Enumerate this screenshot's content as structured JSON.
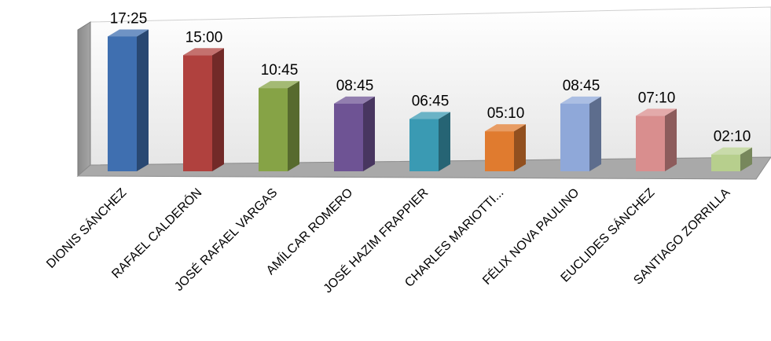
{
  "chart_data": {
    "type": "bar",
    "style": "3d-column",
    "categories": [
      "DIONIS SÁNCHEZ",
      "RAFAEL CALDERÓN",
      "JOSÉ RAFAEL VARGAS",
      "AMÍLCAR ROMERO",
      "JOSÉ  HAZIM FRAPPIER",
      "CHARLES MARIOTTI...",
      "FÉLIX NOVA PAULINO",
      "EUCLIDES SÁNCHEZ",
      "SANTIAGO ZORRILLA"
    ],
    "values": [
      17.4167,
      15.0,
      10.75,
      8.75,
      6.75,
      5.1667,
      8.75,
      7.1667,
      2.1667
    ],
    "data_labels": [
      "17:25",
      "15:00",
      "10:45",
      "08:45",
      "06:45",
      "05:10",
      "08:45",
      "07:10",
      "02:10"
    ],
    "colors": [
      "#3f6fb0",
      "#b0413e",
      "#86a346",
      "#6e5394",
      "#3a9ab3",
      "#e07b2f",
      "#8fa8d9",
      "#d98e8e",
      "#b7cf8d"
    ],
    "ylim": [
      0,
      18
    ],
    "grid": false,
    "legend": "none",
    "title": "",
    "xlabel": "",
    "ylabel": ""
  }
}
